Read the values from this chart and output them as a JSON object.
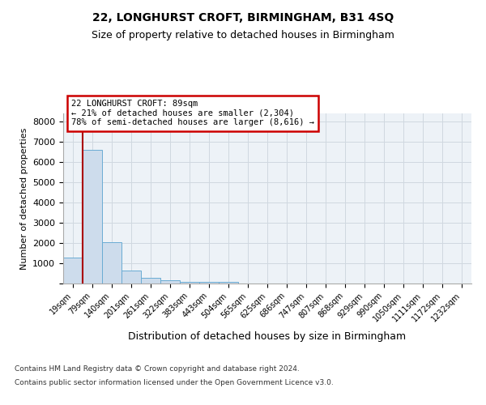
{
  "title1": "22, LONGHURST CROFT, BIRMINGHAM, B31 4SQ",
  "title2": "Size of property relative to detached houses in Birmingham",
  "xlabel": "Distribution of detached houses by size in Birmingham",
  "ylabel": "Number of detached properties",
  "bin_labels": [
    "19sqm",
    "79sqm",
    "140sqm",
    "201sqm",
    "261sqm",
    "322sqm",
    "383sqm",
    "443sqm",
    "504sqm",
    "565sqm",
    "625sqm",
    "686sqm",
    "747sqm",
    "807sqm",
    "868sqm",
    "929sqm",
    "990sqm",
    "1050sqm",
    "1111sqm",
    "1172sqm",
    "1232sqm"
  ],
  "bar_heights": [
    1300,
    6600,
    2050,
    650,
    300,
    150,
    100,
    100,
    100,
    0,
    0,
    0,
    0,
    0,
    0,
    0,
    0,
    0,
    0,
    0,
    0
  ],
  "bar_color": "#cddcec",
  "bar_edge_color": "#6aacd4",
  "property_line_color": "#aa0000",
  "annotation_line1": "22 LONGHURST CROFT: 89sqm",
  "annotation_line2": "← 21% of detached houses are smaller (2,304)",
  "annotation_line3": "78% of semi-detached houses are larger (8,616) →",
  "annotation_box_color": "#cc0000",
  "ylim": [
    0,
    8400
  ],
  "yticks": [
    0,
    1000,
    2000,
    3000,
    4000,
    5000,
    6000,
    7000,
    8000
  ],
  "grid_color": "#d0d8e0",
  "bg_color": "#edf2f7",
  "footnote1": "Contains HM Land Registry data © Crown copyright and database right 2024.",
  "footnote2": "Contains public sector information licensed under the Open Government Licence v3.0."
}
